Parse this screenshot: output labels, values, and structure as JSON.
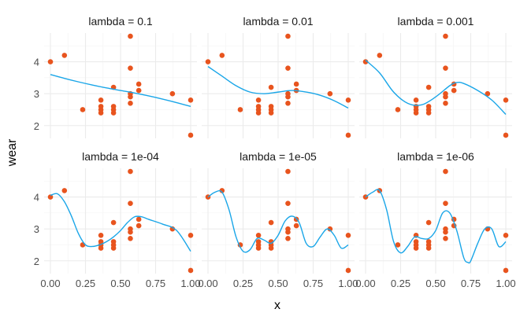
{
  "chart_data": {
    "type": "scatter",
    "xlabel": "x",
    "ylabel": "wear",
    "xlim": [
      0,
      1
    ],
    "ylim": [
      1.6,
      4.9
    ],
    "x_ticks": [
      0,
      0.25,
      0.5,
      0.75,
      1
    ],
    "x_tick_labels": [
      "0.00",
      "0.25",
      "0.50",
      "0.75",
      "1.00"
    ],
    "y_ticks": [
      2,
      3,
      4
    ],
    "y_tick_labels": [
      "2",
      "3",
      "4"
    ],
    "grid": true,
    "colors": {
      "points": "#e8541e",
      "curve": "#1aa6e8"
    },
    "points": {
      "x": [
        0,
        0.1,
        0.23,
        0.36,
        0.36,
        0.36,
        0.36,
        0.45,
        0.45,
        0.45,
        0.45,
        0.57,
        0.57,
        0.57,
        0.57,
        0.57,
        0.63,
        0.63,
        0.87,
        1,
        1
      ],
      "y": [
        4.0,
        4.2,
        2.5,
        2.8,
        2.6,
        2.5,
        2.4,
        3.2,
        2.6,
        2.5,
        2.4,
        4.8,
        3.8,
        3.0,
        2.9,
        2.7,
        3.3,
        3.1,
        3.0,
        2.8,
        1.7
      ]
    },
    "panels": [
      {
        "title": "lambda = 0.1",
        "fit_x": [
          0,
          0.1,
          0.2,
          0.3,
          0.4,
          0.5,
          0.6,
          0.7,
          0.8,
          0.9,
          1
        ],
        "fit_y": [
          3.6,
          3.48,
          3.37,
          3.27,
          3.18,
          3.1,
          3.02,
          2.93,
          2.83,
          2.72,
          2.6
        ]
      },
      {
        "title": "lambda = 0.01",
        "fit_x": [
          0,
          0.1,
          0.2,
          0.3,
          0.4,
          0.5,
          0.6,
          0.7,
          0.8,
          0.9,
          1
        ],
        "fit_y": [
          3.85,
          3.55,
          3.25,
          3.05,
          3.0,
          3.05,
          3.1,
          3.05,
          2.95,
          2.78,
          2.55
        ]
      },
      {
        "title": "lambda = 0.001",
        "fit_x": [
          0,
          0.1,
          0.2,
          0.3,
          0.4,
          0.5,
          0.6,
          0.65,
          0.7,
          0.8,
          0.9,
          1
        ],
        "fit_y": [
          4.05,
          3.65,
          3.05,
          2.7,
          2.65,
          2.9,
          3.25,
          3.35,
          3.32,
          3.1,
          2.8,
          2.35
        ]
      },
      {
        "title": "lambda = 1e-04",
        "fit_x": [
          0,
          0.05,
          0.1,
          0.15,
          0.2,
          0.25,
          0.3,
          0.35,
          0.4,
          0.45,
          0.5,
          0.55,
          0.6,
          0.65,
          0.7,
          0.8,
          0.9,
          1
        ],
        "fit_y": [
          4.05,
          4.1,
          3.85,
          3.4,
          2.85,
          2.5,
          2.45,
          2.5,
          2.6,
          2.75,
          2.95,
          3.2,
          3.38,
          3.38,
          3.3,
          3.15,
          2.95,
          2.3
        ]
      },
      {
        "title": "lambda = 1e-05",
        "fit_x": [
          0,
          0.05,
          0.1,
          0.15,
          0.2,
          0.25,
          0.3,
          0.35,
          0.4,
          0.45,
          0.5,
          0.55,
          0.6,
          0.65,
          0.7,
          0.75,
          0.8,
          0.85,
          0.9,
          0.95,
          1
        ],
        "fit_y": [
          4.0,
          4.15,
          4.15,
          3.6,
          2.75,
          2.3,
          2.35,
          2.7,
          2.65,
          2.55,
          2.8,
          3.25,
          3.4,
          3.2,
          2.55,
          2.45,
          2.75,
          3.0,
          2.8,
          2.4,
          2.5
        ]
      },
      {
        "title": "lambda = 1e-06",
        "fit_x": [
          0,
          0.05,
          0.1,
          0.15,
          0.2,
          0.25,
          0.3,
          0.35,
          0.4,
          0.45,
          0.5,
          0.55,
          0.6,
          0.65,
          0.7,
          0.73,
          0.75,
          0.8,
          0.85,
          0.9,
          0.95,
          1
        ],
        "fit_y": [
          4.0,
          4.15,
          4.2,
          3.6,
          2.6,
          2.25,
          2.45,
          2.75,
          2.7,
          2.7,
          2.95,
          3.5,
          3.5,
          2.95,
          2.1,
          1.95,
          2.0,
          2.55,
          3.0,
          3.0,
          2.45,
          2.6
        ]
      }
    ]
  }
}
